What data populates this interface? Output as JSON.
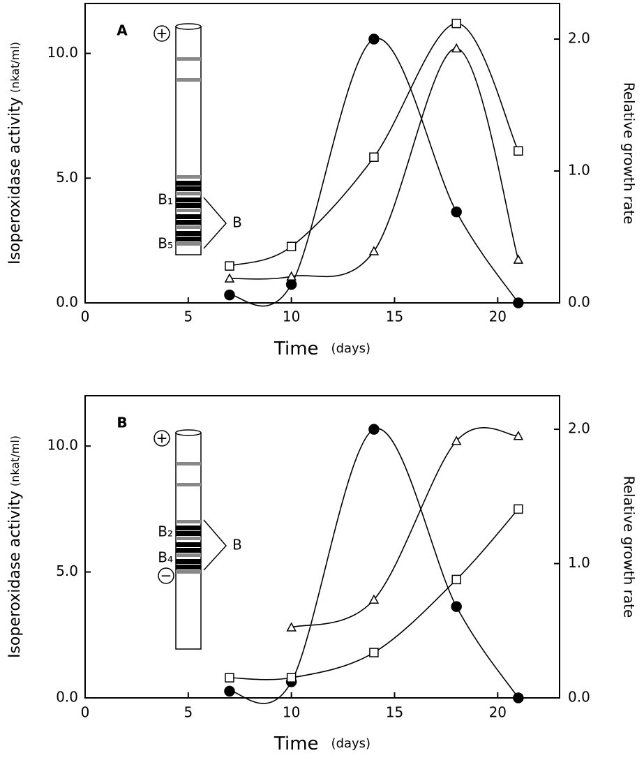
{
  "chart_data": [
    {
      "type": "line",
      "panel_label": "A",
      "x_label": "Time",
      "x_unit": "(days)",
      "y_label": "Isoperoxidase activity",
      "y_unit": "(nkat/ml)",
      "y2_label": "Relative growth rate",
      "gel_labels": {
        "anode": "+",
        "band_top": "B₁",
        "band_bottom": "B₅",
        "group": "B"
      },
      "x": [
        7,
        10,
        14,
        18,
        21
      ],
      "xlim": [
        0,
        23
      ],
      "xticks": [
        0,
        5,
        10,
        15,
        20
      ],
      "ylim": [
        0,
        12
      ],
      "yticks": [
        {
          "value": 0,
          "label": "0.0"
        },
        {
          "value": 5,
          "label": "5.0"
        },
        {
          "value": 10,
          "label": "10.0"
        }
      ],
      "y2lim": [
        0,
        2.27
      ],
      "y2ticks": [
        {
          "value": 0,
          "label": "0.0"
        },
        {
          "value": 1,
          "label": "1.0"
        },
        {
          "value": 2,
          "label": "2.0"
        }
      ],
      "series": [
        {
          "marker": "circle",
          "color": "#000000",
          "axis": "y2",
          "values": [
            0.06,
            0.14,
            2.0,
            0.69,
            0.0
          ]
        },
        {
          "marker": "square",
          "color": "#000000",
          "values": [
            1.48,
            2.26,
            5.84,
            11.2,
            6.09
          ]
        },
        {
          "marker": "triangle",
          "color": "#000000",
          "values": [
            0.98,
            1.06,
            2.07,
            10.2,
            1.73
          ]
        }
      ]
    },
    {
      "type": "line",
      "panel_label": "B",
      "x_label": "Time",
      "x_unit": "(days)",
      "y_label": "Isoperoxidase activity",
      "y_unit": "(nkat/ml)",
      "y2_label": "Relative growth rate",
      "gel_labels": {
        "anode": "+",
        "band_top": "B₂",
        "band_bottom": "B₄",
        "group": "B",
        "cathode": "−"
      },
      "x": [
        7,
        10,
        14,
        18,
        21
      ],
      "xlim": [
        0,
        23
      ],
      "xticks": [
        0,
        5,
        10,
        15,
        20
      ],
      "ylim": [
        0,
        12
      ],
      "yticks": [
        {
          "value": 0,
          "label": "0.0"
        },
        {
          "value": 5,
          "label": "5.0"
        },
        {
          "value": 10,
          "label": "10.0"
        }
      ],
      "y2lim": [
        0,
        2.25
      ],
      "y2ticks": [
        {
          "value": 0,
          "label": "0.0"
        },
        {
          "value": 1,
          "label": "1.0"
        },
        {
          "value": 2,
          "label": "2.0"
        }
      ],
      "series": [
        {
          "marker": "circle",
          "color": "#000000",
          "axis": "y2",
          "values": [
            0.05,
            0.12,
            2.0,
            0.68,
            0.0
          ]
        },
        {
          "marker": "square",
          "color": "#000000",
          "values": [
            0.8,
            0.8,
            1.8,
            4.7,
            7.5
          ]
        },
        {
          "marker": "triangle",
          "color": "#000000",
          "values": [
            null,
            2.8,
            3.9,
            10.2,
            10.4
          ]
        }
      ]
    }
  ]
}
